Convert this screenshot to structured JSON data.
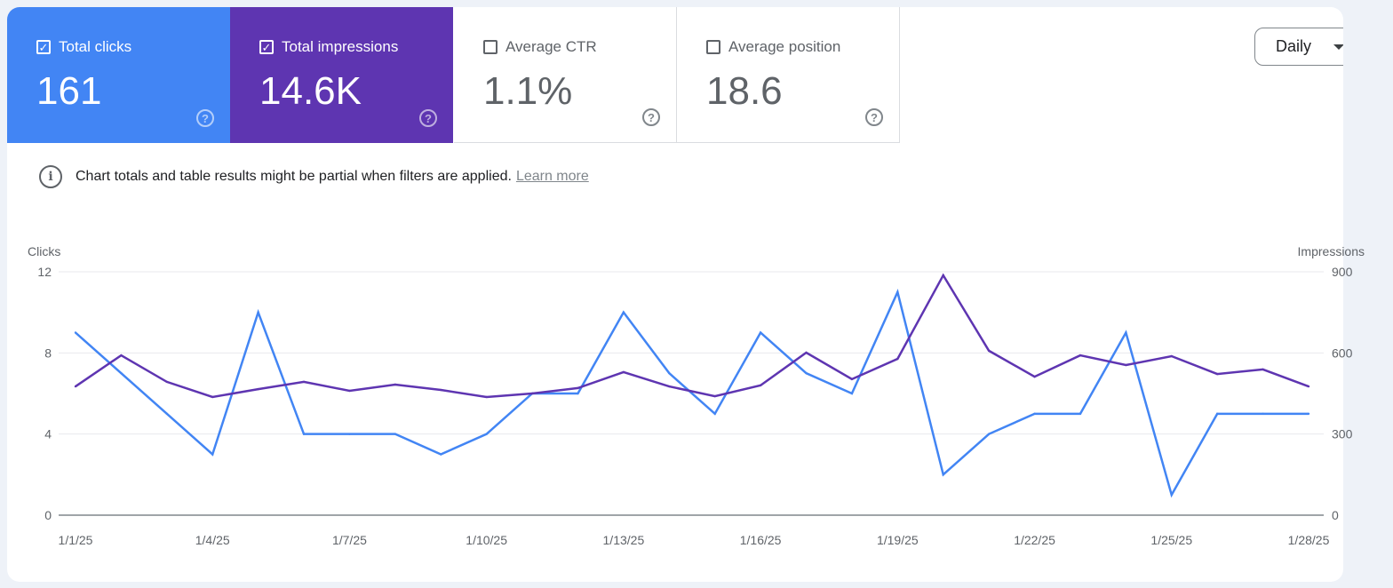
{
  "metrics": [
    {
      "label": "Total clicks",
      "value": "161",
      "checked": true
    },
    {
      "label": "Total impressions",
      "value": "14.6K",
      "checked": true
    },
    {
      "label": "Average CTR",
      "value": "1.1%",
      "checked": false
    },
    {
      "label": "Average position",
      "value": "18.6",
      "checked": false
    }
  ],
  "help_glyph": "?",
  "check_glyph": "✓",
  "granularity": "Daily",
  "notice": {
    "icon": "i",
    "text": "Chart totals and table results might be partial when filters are applied.",
    "link": "Learn more"
  },
  "colors": {
    "clicks": "#4285f4",
    "impressions": "#5e35b1"
  },
  "chart_data": {
    "type": "line",
    "x": [
      "1/1/25",
      "1/2/25",
      "1/3/25",
      "1/4/25",
      "1/5/25",
      "1/6/25",
      "1/7/25",
      "1/8/25",
      "1/9/25",
      "1/10/25",
      "1/11/25",
      "1/12/25",
      "1/13/25",
      "1/14/25",
      "1/15/25",
      "1/16/25",
      "1/17/25",
      "1/18/25",
      "1/19/25",
      "1/20/25",
      "1/21/25",
      "1/22/25",
      "1/23/25",
      "1/24/25",
      "1/25/25",
      "1/26/25",
      "1/27/25",
      "1/28/25"
    ],
    "x_tick_labels": [
      "1/1/25",
      "1/4/25",
      "1/7/25",
      "1/10/25",
      "1/13/25",
      "1/16/25",
      "1/19/25",
      "1/22/25",
      "1/25/25",
      "1/28/25"
    ],
    "series": [
      {
        "name": "Clicks",
        "axis": "left",
        "values": [
          9,
          7,
          5,
          3,
          10,
          4,
          4,
          4,
          3,
          4,
          6,
          6,
          10,
          7,
          5,
          9,
          7,
          6,
          11,
          2,
          4,
          5,
          5,
          9,
          1,
          5,
          5,
          5
        ]
      },
      {
        "name": "Impressions",
        "axis": "right",
        "values": [
          476,
          591,
          493,
          437,
          466,
          493,
          460,
          483,
          463,
          437,
          450,
          470,
          529,
          476,
          440,
          480,
          601,
          503,
          578,
          887,
          608,
          512,
          591,
          555,
          588,
          522,
          539,
          476
        ]
      }
    ],
    "ylabel_left": "Clicks",
    "ylabel_right": "Impressions",
    "ylim_left": [
      0,
      12
    ],
    "ylim_right": [
      0,
      900
    ],
    "yticks_left": [
      "0",
      "4",
      "8",
      "12"
    ],
    "yticks_right": [
      "0",
      "300",
      "600",
      "900"
    ],
    "grid": true
  }
}
